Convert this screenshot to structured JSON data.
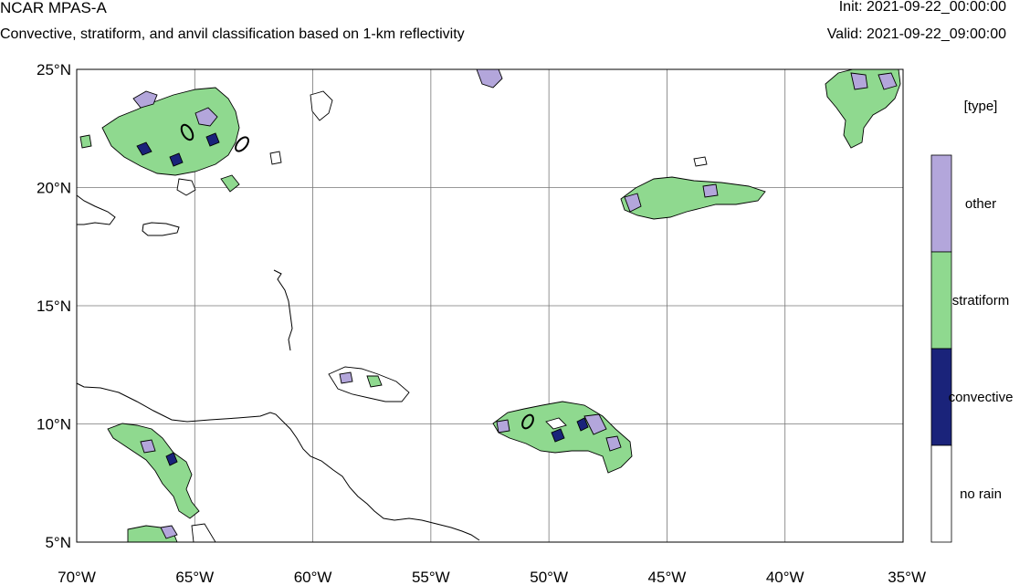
{
  "header": {
    "title": "NCAR MPAS-A",
    "subtitle": "Convective, stratiform, and anvil classification based on 1-km reflectivity",
    "init": "Init: 2021-09-22_00:00:00",
    "valid": "Valid: 2021-09-22_09:00:00"
  },
  "map": {
    "lat_ticks": [
      "25°N",
      "20°N",
      "15°N",
      "10°N",
      "5°N"
    ],
    "lon_ticks": [
      "70°W",
      "65°W",
      "60°W",
      "55°W",
      "50°W",
      "45°W",
      "40°W",
      "35°W"
    ],
    "lat_range": [
      5,
      25
    ],
    "lon_range": [
      -70,
      -35
    ],
    "grid": true
  },
  "legend": {
    "title": "[type]",
    "items": [
      {
        "label": "other",
        "color": "#b3a6db"
      },
      {
        "label": "stratiform",
        "color": "#8fd98f"
      },
      {
        "label": "convective",
        "color": "#1a237a"
      },
      {
        "label": "no rain",
        "color": "#ffffff"
      }
    ]
  }
}
